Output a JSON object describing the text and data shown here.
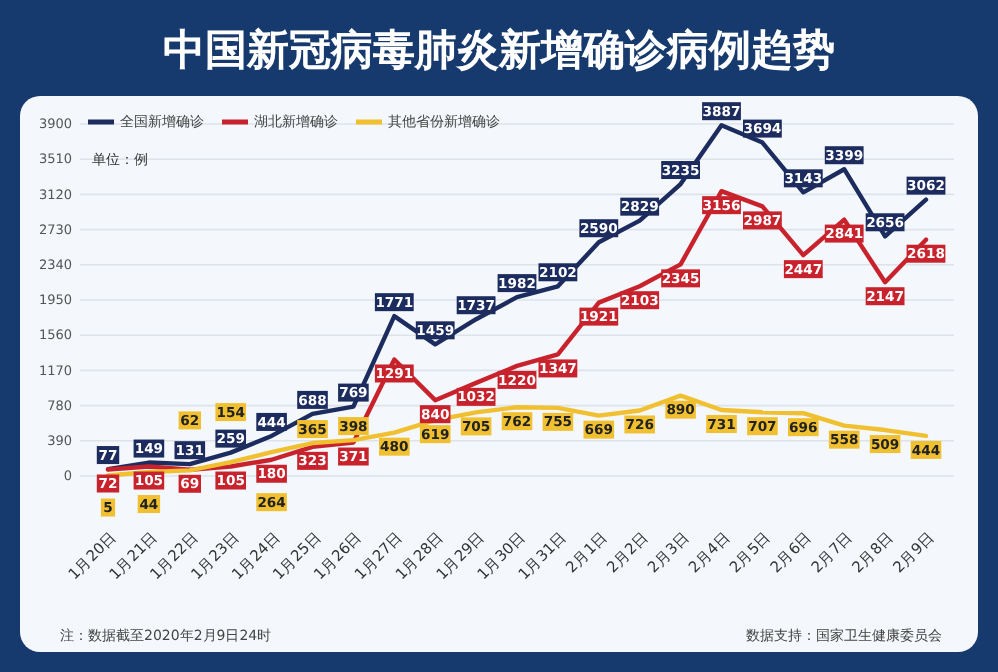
{
  "chart_data": {
    "type": "line",
    "title": "中国新冠病毒肺炎新增确诊病例趋势",
    "ylabel": "单位：例",
    "categories": [
      "1月20日",
      "1月21日",
      "1月22日",
      "1月23日",
      "1月24日",
      "1月25日",
      "1月26日",
      "1月27日",
      "1月28日",
      "1月29日",
      "1月30日",
      "1月31日",
      "2月1日",
      "2月2日",
      "2月3日",
      "2月4日",
      "2月5日",
      "2月6日",
      "2月7日",
      "2月8日",
      "2月9日"
    ],
    "series": [
      {
        "name": "全国新增确诊",
        "color": "#1c2c5e",
        "values": [
          77,
          149,
          131,
          259,
          444,
          688,
          769,
          1771,
          1459,
          1737,
          1982,
          2102,
          2590,
          2829,
          3235,
          3887,
          3694,
          3143,
          3399,
          2656,
          3062
        ]
      },
      {
        "name": "湖北新增确诊",
        "color": "#c8232c",
        "values": [
          72,
          105,
          69,
          105,
          180,
          323,
          371,
          1291,
          840,
          1032,
          1220,
          1347,
          1921,
          2103,
          2345,
          3156,
          2987,
          2447,
          2841,
          2147,
          2618
        ]
      },
      {
        "name": "其他省份新增确诊",
        "color": "#f0c030",
        "values": [
          5,
          44,
          62,
          154,
          264,
          365,
          398,
          480,
          619,
          705,
          762,
          755,
          669,
          726,
          890,
          731,
          707,
          696,
          558,
          509,
          444
        ]
      }
    ],
    "ylim": [
      0,
      3900
    ],
    "yticks": [
      0,
      390,
      780,
      1170,
      1560,
      1950,
      2340,
      2730,
      3120,
      3510,
      3900
    ],
    "grid": "y",
    "legend": "top left",
    "marker": "none",
    "line_style": "solid",
    "data_labels": true,
    "annotations": [
      "注：数据截至2020年2月9日24时",
      "数据支持：国家卫生健康委员会"
    ]
  }
}
